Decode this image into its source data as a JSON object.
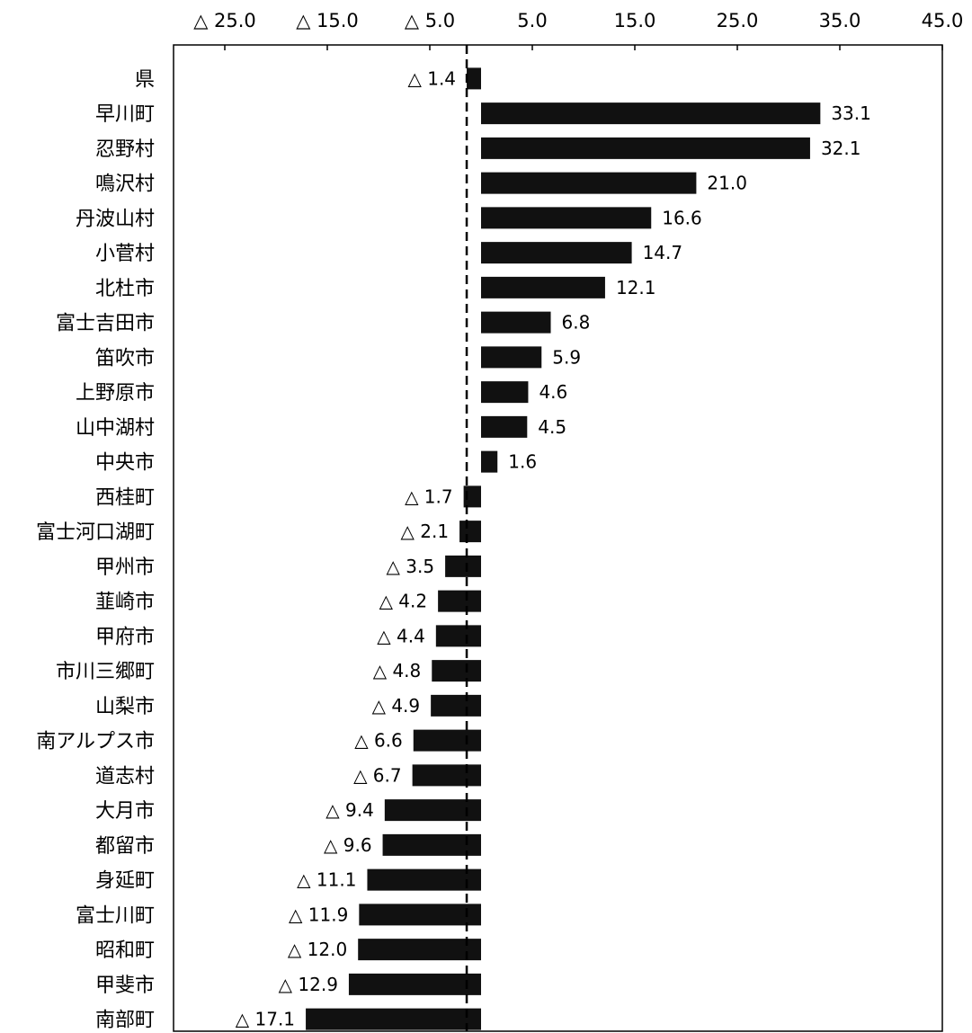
{
  "chart_data": {
    "type": "bar",
    "orientation": "horizontal",
    "title": "",
    "xlabel": "",
    "ylabel": "",
    "xlim": [
      -30,
      45
    ],
    "x_ticks": [
      {
        "value": -25,
        "label": "△ 25.0"
      },
      {
        "value": -15,
        "label": "△ 15.0"
      },
      {
        "value": -5,
        "label": "△ 5.0"
      },
      {
        "value": 5,
        "label": "5.0"
      },
      {
        "value": 15,
        "label": "15.0"
      },
      {
        "value": 25,
        "label": "25.0"
      },
      {
        "value": 35,
        "label": "35.0"
      },
      {
        "value": 45,
        "label": "45.0"
      }
    ],
    "reference_line": {
      "value": -1.4,
      "style": "dashed"
    },
    "grid": false,
    "legend": "none",
    "bar_color": "#111111",
    "categories": [
      "県",
      "早川町",
      "忍野村",
      "鳴沢村",
      "丹波山村",
      "小菅村",
      "北杜市",
      "富士吉田市",
      "笛吹市",
      "上野原市",
      "山中湖村",
      "中央市",
      "西桂町",
      "富士河口湖町",
      "甲州市",
      "韮崎市",
      "甲府市",
      "市川三郷町",
      "山梨市",
      "南アルプス市",
      "道志村",
      "大月市",
      "都留市",
      "身延町",
      "富士川町",
      "昭和町",
      "甲斐市",
      "南部町"
    ],
    "values": [
      -1.4,
      33.1,
      32.1,
      21.0,
      16.6,
      14.7,
      12.1,
      6.8,
      5.9,
      4.6,
      4.5,
      1.6,
      -1.7,
      -2.1,
      -3.5,
      -4.2,
      -4.4,
      -4.8,
      -4.9,
      -6.6,
      -6.7,
      -9.4,
      -9.6,
      -11.1,
      -11.9,
      -12.0,
      -12.9,
      -17.1
    ],
    "value_labels": [
      "△ 1.4",
      "33.1",
      "32.1",
      "21.0",
      "16.6",
      "14.7",
      "12.1",
      "6.8",
      "5.9",
      "4.6",
      "4.5",
      "1.6",
      "△ 1.7",
      "△ 2.1",
      "△ 3.5",
      "△ 4.2",
      "△ 4.4",
      "△ 4.8",
      "△ 4.9",
      "△ 6.6",
      "△ 6.7",
      "△ 9.4",
      "△ 9.6",
      "△ 11.1",
      "△ 11.9",
      "△ 12.0",
      "△ 12.9",
      "△ 17.1"
    ]
  }
}
